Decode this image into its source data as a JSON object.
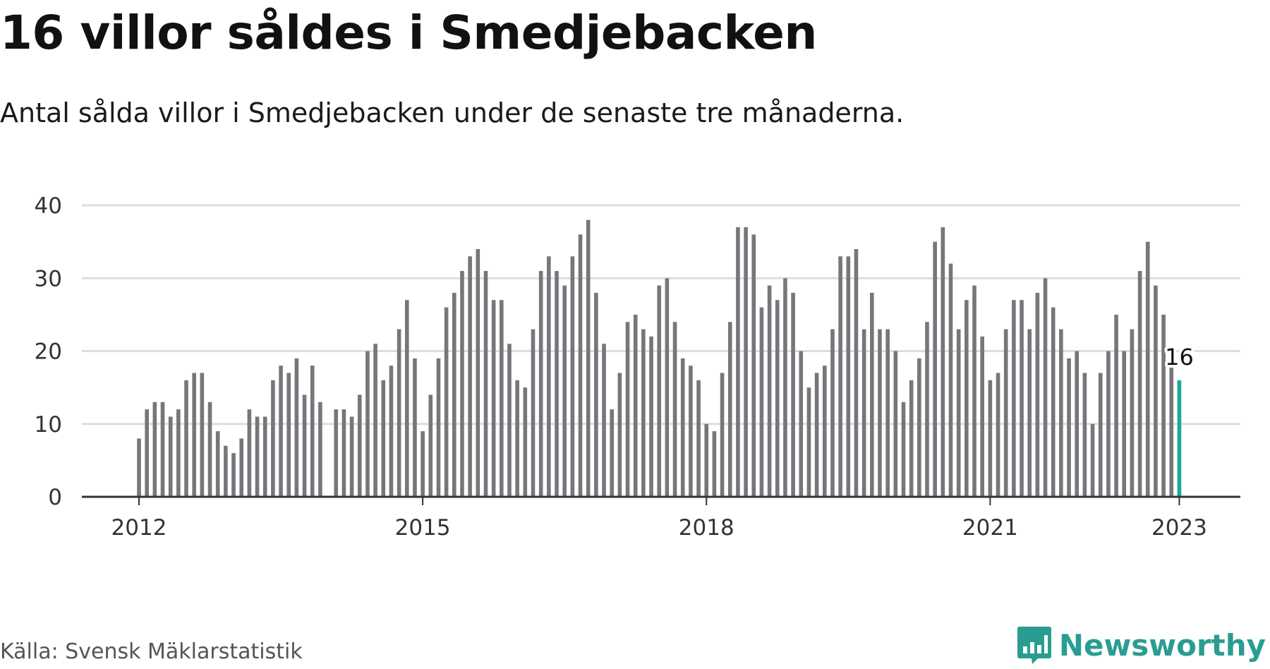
{
  "title": "16 villor såldes i Smedjebacken",
  "subtitle": "Antal sålda villor i Smedjebacken under de senaste tre månaderna.",
  "source": "Källa: Svensk Mäklarstatistik",
  "brand": "Newsworthy",
  "logo_icon": "bar-chart-speech-bubble-icon",
  "colors": {
    "bar": "#76767b",
    "highlight": "#1aa89a",
    "grid": "#dddddd",
    "axis": "#333333",
    "brand": "#2a9d92"
  },
  "chart_data": {
    "type": "bar",
    "ylim": [
      0,
      40
    ],
    "yticks": [
      "0",
      "10",
      "20",
      "30",
      "40"
    ],
    "xticks": [
      "2012",
      "2015",
      "2018",
      "2021",
      "2023"
    ],
    "start_month": "2012-01",
    "values": [
      8,
      12,
      13,
      13,
      11,
      12,
      16,
      17,
      17,
      13,
      9,
      7,
      6,
      8,
      12,
      11,
      11,
      16,
      18,
      17,
      19,
      14,
      18,
      13,
      0,
      12,
      12,
      11,
      14,
      20,
      21,
      16,
      18,
      23,
      27,
      19,
      9,
      14,
      19,
      26,
      28,
      31,
      33,
      34,
      31,
      27,
      27,
      21,
      16,
      15,
      23,
      31,
      33,
      31,
      29,
      33,
      36,
      38,
      28,
      21,
      12,
      17,
      24,
      25,
      23,
      22,
      29,
      30,
      24,
      19,
      18,
      16,
      10,
      9,
      17,
      24,
      37,
      37,
      36,
      26,
      29,
      27,
      30,
      28,
      20,
      15,
      17,
      18,
      23,
      33,
      33,
      34,
      23,
      28,
      23,
      23,
      20,
      13,
      16,
      19,
      24,
      35,
      37,
      32,
      23,
      27,
      29,
      22,
      16,
      17,
      23,
      27,
      27,
      23,
      28,
      30,
      26,
      23,
      19,
      20,
      17,
      10,
      17,
      20,
      25,
      20,
      23,
      31,
      35,
      29,
      25,
      18,
      16
    ],
    "highlight_label": "16"
  }
}
